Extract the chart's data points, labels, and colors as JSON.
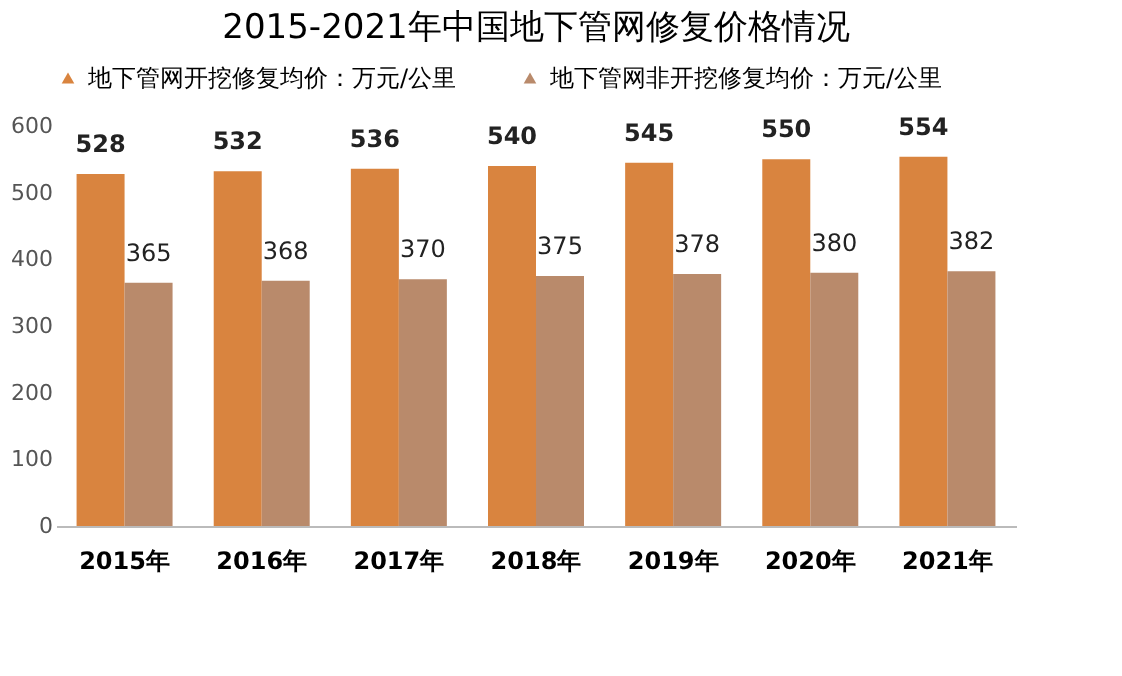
{
  "chart_data": {
    "type": "bar",
    "title": "2015-2021年中国地下管网修复价格情况",
    "categories": [
      "2015年",
      "2016年",
      "2017年",
      "2018年",
      "2019年",
      "2020年",
      "2021年"
    ],
    "series": [
      {
        "name": "地下管网开挖修复均价：万元/公里",
        "color": "#d9843f",
        "values": [
          528,
          532,
          536,
          540,
          545,
          550,
          554
        ]
      },
      {
        "name": "地下管网非开挖修复均价：万元/公里",
        "color": "#b98a6b",
        "values": [
          365,
          368,
          370,
          375,
          378,
          380,
          382
        ]
      }
    ],
    "ylim": [
      0,
      600
    ],
    "yticks": [
      0,
      100,
      200,
      300,
      400,
      500,
      600
    ],
    "data_labels": true,
    "grid": false,
    "legend": "top left",
    "marker": "triangle"
  }
}
